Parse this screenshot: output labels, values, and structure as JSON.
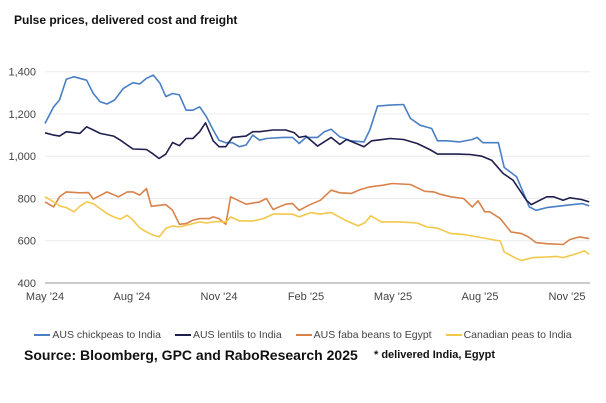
{
  "chart_data": {
    "type": "line",
    "title": "Pulse prices, delivered cost and freight",
    "xlabel": "",
    "ylabel": "",
    "ylim": [
      400,
      1400
    ],
    "yticks": [
      400,
      600,
      800,
      1000,
      1200,
      1400
    ],
    "ytick_labels": [
      "400",
      "600",
      "800",
      "1,000",
      "1,200",
      "1,400"
    ],
    "xticks": [
      "2024-05-01",
      "2024-08-01",
      "2024-11-01",
      "2025-02-01",
      "2025-05-01",
      "2025-08-01",
      "2025-11-01"
    ],
    "xtick_labels": [
      "May '24",
      "Aug '24",
      "Nov '24",
      "Feb '25",
      "May '25",
      "Aug '25",
      "Nov '25"
    ],
    "grid": "horizontal",
    "legend_position": "bottom",
    "series": [
      {
        "name": "AUS chickpeas to India",
        "color": "#4a7fc4",
        "points": [
          [
            "2024-05-01",
            1155
          ],
          [
            "2024-05-10",
            1234
          ],
          [
            "2024-05-16",
            1266
          ],
          [
            "2024-05-23",
            1364
          ],
          [
            "2024-05-31",
            1376
          ],
          [
            "2024-06-14",
            1360
          ],
          [
            "2024-06-21",
            1297
          ],
          [
            "2024-06-28",
            1258
          ],
          [
            "2024-07-05",
            1247
          ],
          [
            "2024-07-13",
            1266
          ],
          [
            "2024-07-22",
            1321
          ],
          [
            "2024-08-02",
            1348
          ],
          [
            "2024-08-09",
            1342
          ],
          [
            "2024-08-16",
            1369
          ],
          [
            "2024-08-23",
            1384
          ],
          [
            "2024-08-30",
            1345
          ],
          [
            "2024-09-06",
            1282
          ],
          [
            "2024-09-13",
            1297
          ],
          [
            "2024-09-20",
            1290
          ],
          [
            "2024-09-27",
            1218
          ],
          [
            "2024-10-04",
            1218
          ],
          [
            "2024-10-11",
            1234
          ],
          [
            "2024-10-18",
            1187
          ],
          [
            "2024-10-25",
            1124
          ],
          [
            "2024-11-01",
            1076
          ],
          [
            "2024-11-08",
            1064
          ],
          [
            "2024-11-15",
            1064
          ],
          [
            "2024-11-22",
            1045
          ],
          [
            "2024-11-29",
            1053
          ],
          [
            "2024-12-06",
            1100
          ],
          [
            "2024-12-13",
            1076
          ],
          [
            "2024-12-20",
            1084
          ],
          [
            "2025-01-07",
            1089
          ],
          [
            "2025-01-17",
            1089
          ],
          [
            "2025-01-24",
            1060
          ],
          [
            "2025-02-01",
            1089
          ],
          [
            "2025-02-13",
            1089
          ],
          [
            "2025-02-20",
            1116
          ],
          [
            "2025-02-27",
            1128
          ],
          [
            "2025-03-06",
            1092
          ],
          [
            "2025-03-17",
            1073
          ],
          [
            "2025-03-31",
            1068
          ],
          [
            "2025-04-07",
            1124
          ],
          [
            "2025-04-15",
            1237
          ],
          [
            "2025-04-28",
            1242
          ],
          [
            "2025-05-12",
            1245
          ],
          [
            "2025-05-19",
            1179
          ],
          [
            "2025-05-29",
            1147
          ],
          [
            "2025-06-11",
            1131
          ],
          [
            "2025-06-17",
            1073
          ],
          [
            "2025-06-27",
            1073
          ],
          [
            "2025-07-10",
            1068
          ],
          [
            "2025-07-23",
            1079
          ],
          [
            "2025-07-28",
            1089
          ],
          [
            "2025-08-04",
            1064
          ],
          [
            "2025-08-20",
            1064
          ],
          [
            "2025-08-26",
            947
          ],
          [
            "2025-09-09",
            902
          ],
          [
            "2025-09-22",
            760
          ],
          [
            "2025-09-29",
            744
          ],
          [
            "2025-10-10",
            757
          ],
          [
            "2025-10-31",
            768
          ],
          [
            "2025-11-17",
            776
          ],
          [
            "2025-11-24",
            765
          ]
        ]
      },
      {
        "name": "AUS lentils to India",
        "color": "#1f1f4d",
        "points": [
          [
            "2024-05-01",
            1111
          ],
          [
            "2024-05-10",
            1100
          ],
          [
            "2024-05-16",
            1095
          ],
          [
            "2024-05-23",
            1116
          ],
          [
            "2024-06-07",
            1108
          ],
          [
            "2024-06-14",
            1139
          ],
          [
            "2024-06-21",
            1124
          ],
          [
            "2024-06-28",
            1108
          ],
          [
            "2024-07-12",
            1095
          ],
          [
            "2024-07-19",
            1076
          ],
          [
            "2024-07-26",
            1053
          ],
          [
            "2024-08-02",
            1034
          ],
          [
            "2024-08-16",
            1032
          ],
          [
            "2024-08-23",
            1010
          ],
          [
            "2024-08-29",
            989
          ],
          [
            "2024-09-06",
            1010
          ],
          [
            "2024-09-13",
            1065
          ],
          [
            "2024-09-20",
            1050
          ],
          [
            "2024-09-27",
            1084
          ],
          [
            "2024-10-04",
            1084
          ],
          [
            "2024-10-11",
            1116
          ],
          [
            "2024-10-17",
            1158
          ],
          [
            "2024-10-25",
            1073
          ],
          [
            "2024-11-01",
            1045
          ],
          [
            "2024-11-08",
            1045
          ],
          [
            "2024-11-15",
            1089
          ],
          [
            "2024-11-29",
            1095
          ],
          [
            "2024-12-06",
            1116
          ],
          [
            "2024-12-13",
            1116
          ],
          [
            "2024-12-27",
            1124
          ],
          [
            "2025-01-10",
            1124
          ],
          [
            "2025-01-19",
            1111
          ],
          [
            "2025-01-24",
            1089
          ],
          [
            "2025-02-01",
            1095
          ],
          [
            "2025-02-13",
            1048
          ],
          [
            "2025-02-27",
            1089
          ],
          [
            "2025-03-06",
            1056
          ],
          [
            "2025-03-13",
            1079
          ],
          [
            "2025-03-31",
            1045
          ],
          [
            "2025-04-09",
            1073
          ],
          [
            "2025-04-28",
            1084
          ],
          [
            "2025-05-12",
            1079
          ],
          [
            "2025-05-26",
            1060
          ],
          [
            "2025-06-09",
            1032
          ],
          [
            "2025-06-17",
            1010
          ],
          [
            "2025-06-27",
            1010
          ],
          [
            "2025-07-07",
            1010
          ],
          [
            "2025-07-21",
            1008
          ],
          [
            "2025-08-03",
            1000
          ],
          [
            "2025-08-13",
            981
          ],
          [
            "2025-08-25",
            918
          ],
          [
            "2025-09-05",
            887
          ],
          [
            "2025-09-19",
            792
          ],
          [
            "2025-09-24",
            771
          ],
          [
            "2025-10-10",
            808
          ],
          [
            "2025-10-17",
            808
          ],
          [
            "2025-10-27",
            792
          ],
          [
            "2025-11-04",
            803
          ],
          [
            "2025-11-16",
            795
          ],
          [
            "2025-11-24",
            784
          ]
        ]
      },
      {
        "name": "AUS faba beans to Egypt",
        "color": "#d9824a",
        "points": [
          [
            "2024-05-01",
            784
          ],
          [
            "2024-05-10",
            760
          ],
          [
            "2024-05-16",
            808
          ],
          [
            "2024-05-23",
            831
          ],
          [
            "2024-06-07",
            827
          ],
          [
            "2024-06-16",
            828
          ],
          [
            "2024-06-21",
            797
          ],
          [
            "2024-07-05",
            831
          ],
          [
            "2024-07-17",
            808
          ],
          [
            "2024-07-26",
            831
          ],
          [
            "2024-08-02",
            831
          ],
          [
            "2024-08-09",
            816
          ],
          [
            "2024-08-16",
            847
          ],
          [
            "2024-08-21",
            763
          ],
          [
            "2024-09-06",
            771
          ],
          [
            "2024-09-13",
            744
          ],
          [
            "2024-09-20",
            678
          ],
          [
            "2024-09-27",
            681
          ],
          [
            "2024-10-04",
            697
          ],
          [
            "2024-10-11",
            705
          ],
          [
            "2024-10-21",
            705
          ],
          [
            "2024-10-25",
            713
          ],
          [
            "2024-11-01",
            705
          ],
          [
            "2024-11-08",
            678
          ],
          [
            "2024-11-13",
            808
          ],
          [
            "2024-11-29",
            773
          ],
          [
            "2024-12-13",
            784
          ],
          [
            "2024-12-20",
            800
          ],
          [
            "2024-12-27",
            748
          ],
          [
            "2025-01-10",
            773
          ],
          [
            "2025-01-17",
            776
          ],
          [
            "2025-01-24",
            744
          ],
          [
            "2025-02-04",
            768
          ],
          [
            "2025-02-16",
            792
          ],
          [
            "2025-02-27",
            839
          ],
          [
            "2025-03-06",
            827
          ],
          [
            "2025-03-18",
            824
          ],
          [
            "2025-03-27",
            842
          ],
          [
            "2025-04-07",
            855
          ],
          [
            "2025-04-21",
            863
          ],
          [
            "2025-04-30",
            871
          ],
          [
            "2025-05-19",
            866
          ],
          [
            "2025-06-04",
            834
          ],
          [
            "2025-06-13",
            831
          ],
          [
            "2025-06-20",
            820
          ],
          [
            "2025-07-01",
            808
          ],
          [
            "2025-07-14",
            800
          ],
          [
            "2025-07-23",
            760
          ],
          [
            "2025-07-29",
            789
          ],
          [
            "2025-08-06",
            737
          ],
          [
            "2025-08-11",
            737
          ],
          [
            "2025-08-22",
            705
          ],
          [
            "2025-09-03",
            642
          ],
          [
            "2025-09-14",
            634
          ],
          [
            "2025-09-21",
            618
          ],
          [
            "2025-09-29",
            591
          ],
          [
            "2025-10-10",
            586
          ],
          [
            "2025-10-27",
            582
          ],
          [
            "2025-11-04",
            606
          ],
          [
            "2025-11-14",
            618
          ],
          [
            "2025-11-24",
            610
          ]
        ]
      },
      {
        "name": "Canadian peas to India",
        "color": "#f2c84b",
        "points": [
          [
            "2024-05-01",
            808
          ],
          [
            "2024-05-10",
            784
          ],
          [
            "2024-05-16",
            765
          ],
          [
            "2024-05-23",
            757
          ],
          [
            "2024-05-31",
            737
          ],
          [
            "2024-06-07",
            763
          ],
          [
            "2024-06-14",
            784
          ],
          [
            "2024-06-21",
            776
          ],
          [
            "2024-06-28",
            752
          ],
          [
            "2024-07-05",
            729
          ],
          [
            "2024-07-12",
            713
          ],
          [
            "2024-07-19",
            702
          ],
          [
            "2024-07-26",
            721
          ],
          [
            "2024-08-02",
            697
          ],
          [
            "2024-08-09",
            661
          ],
          [
            "2024-08-16",
            642
          ],
          [
            "2024-08-23",
            626
          ],
          [
            "2024-08-29",
            618
          ],
          [
            "2024-09-06",
            658
          ],
          [
            "2024-09-13",
            670
          ],
          [
            "2024-09-20",
            665
          ],
          [
            "2024-09-27",
            673
          ],
          [
            "2024-10-04",
            681
          ],
          [
            "2024-10-11",
            689
          ],
          [
            "2024-10-18",
            684
          ],
          [
            "2024-10-28",
            691
          ],
          [
            "2024-11-08",
            688
          ],
          [
            "2024-11-13",
            713
          ],
          [
            "2024-11-22",
            694
          ],
          [
            "2024-12-06",
            694
          ],
          [
            "2024-12-17",
            705
          ],
          [
            "2024-12-27",
            726
          ],
          [
            "2025-01-10",
            726
          ],
          [
            "2025-01-17",
            726
          ],
          [
            "2025-01-24",
            713
          ],
          [
            "2025-02-06",
            733
          ],
          [
            "2025-02-15",
            726
          ],
          [
            "2025-02-27",
            733
          ],
          [
            "2025-03-13",
            694
          ],
          [
            "2025-03-25",
            670
          ],
          [
            "2025-04-02",
            686
          ],
          [
            "2025-04-08",
            718
          ],
          [
            "2025-04-19",
            689
          ],
          [
            "2025-05-08",
            689
          ],
          [
            "2025-05-26",
            684
          ],
          [
            "2025-06-06",
            665
          ],
          [
            "2025-06-16",
            661
          ],
          [
            "2025-07-01",
            634
          ],
          [
            "2025-07-15",
            629
          ],
          [
            "2025-07-28",
            618
          ],
          [
            "2025-08-22",
            599
          ],
          [
            "2025-08-26",
            547
          ],
          [
            "2025-09-09",
            515
          ],
          [
            "2025-09-14",
            507
          ],
          [
            "2025-09-26",
            520
          ],
          [
            "2025-10-10",
            523
          ],
          [
            "2025-10-20",
            526
          ],
          [
            "2025-10-27",
            520
          ],
          [
            "2025-11-11",
            539
          ],
          [
            "2025-11-19",
            552
          ],
          [
            "2025-11-24",
            536
          ]
        ]
      }
    ]
  },
  "source": "Source: Bloomberg, GPC and RaboResearch 2025",
  "note": "* delivered India, Egypt"
}
